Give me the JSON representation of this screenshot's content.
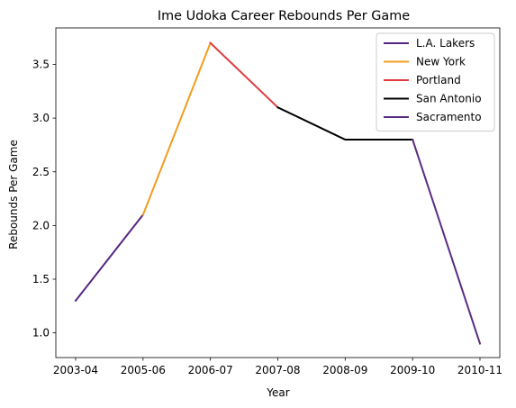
{
  "chart_data": {
    "type": "line",
    "title": "Ime Udoka Career Rebounds Per Game",
    "xlabel": "Year",
    "ylabel": "Rebounds Per Game",
    "categories": [
      "2003-04",
      "2005-06",
      "2006-07",
      "2007-08",
      "2008-09",
      "2009-10",
      "2010-11"
    ],
    "ylim": [
      0.77,
      3.84
    ],
    "yticks": [
      "1.0",
      "1.5",
      "2.0",
      "2.5",
      "3.0",
      "3.5"
    ],
    "grid": false,
    "legend_position": "top-right",
    "series": [
      {
        "name": "L.A. Lakers",
        "color": "#552583",
        "points": [
          [
            "2003-04",
            1.3
          ],
          [
            "2005-06",
            2.1
          ]
        ]
      },
      {
        "name": "New York",
        "color": "#F39C1F",
        "points": [
          [
            "2005-06",
            2.1
          ],
          [
            "2006-07",
            3.7
          ]
        ]
      },
      {
        "name": "Portland",
        "color": "#E03A3E",
        "points": [
          [
            "2006-07",
            3.7
          ],
          [
            "2007-08",
            3.1
          ]
        ]
      },
      {
        "name": "San Antonio",
        "color": "#000000",
        "points": [
          [
            "2007-08",
            3.1
          ],
          [
            "2008-09",
            2.8
          ],
          [
            "2009-10",
            2.8
          ]
        ]
      },
      {
        "name": "Sacramento",
        "color": "#5A2D81",
        "points": [
          [
            "2009-10",
            2.8
          ],
          [
            "2010-11",
            0.9
          ]
        ]
      }
    ]
  }
}
